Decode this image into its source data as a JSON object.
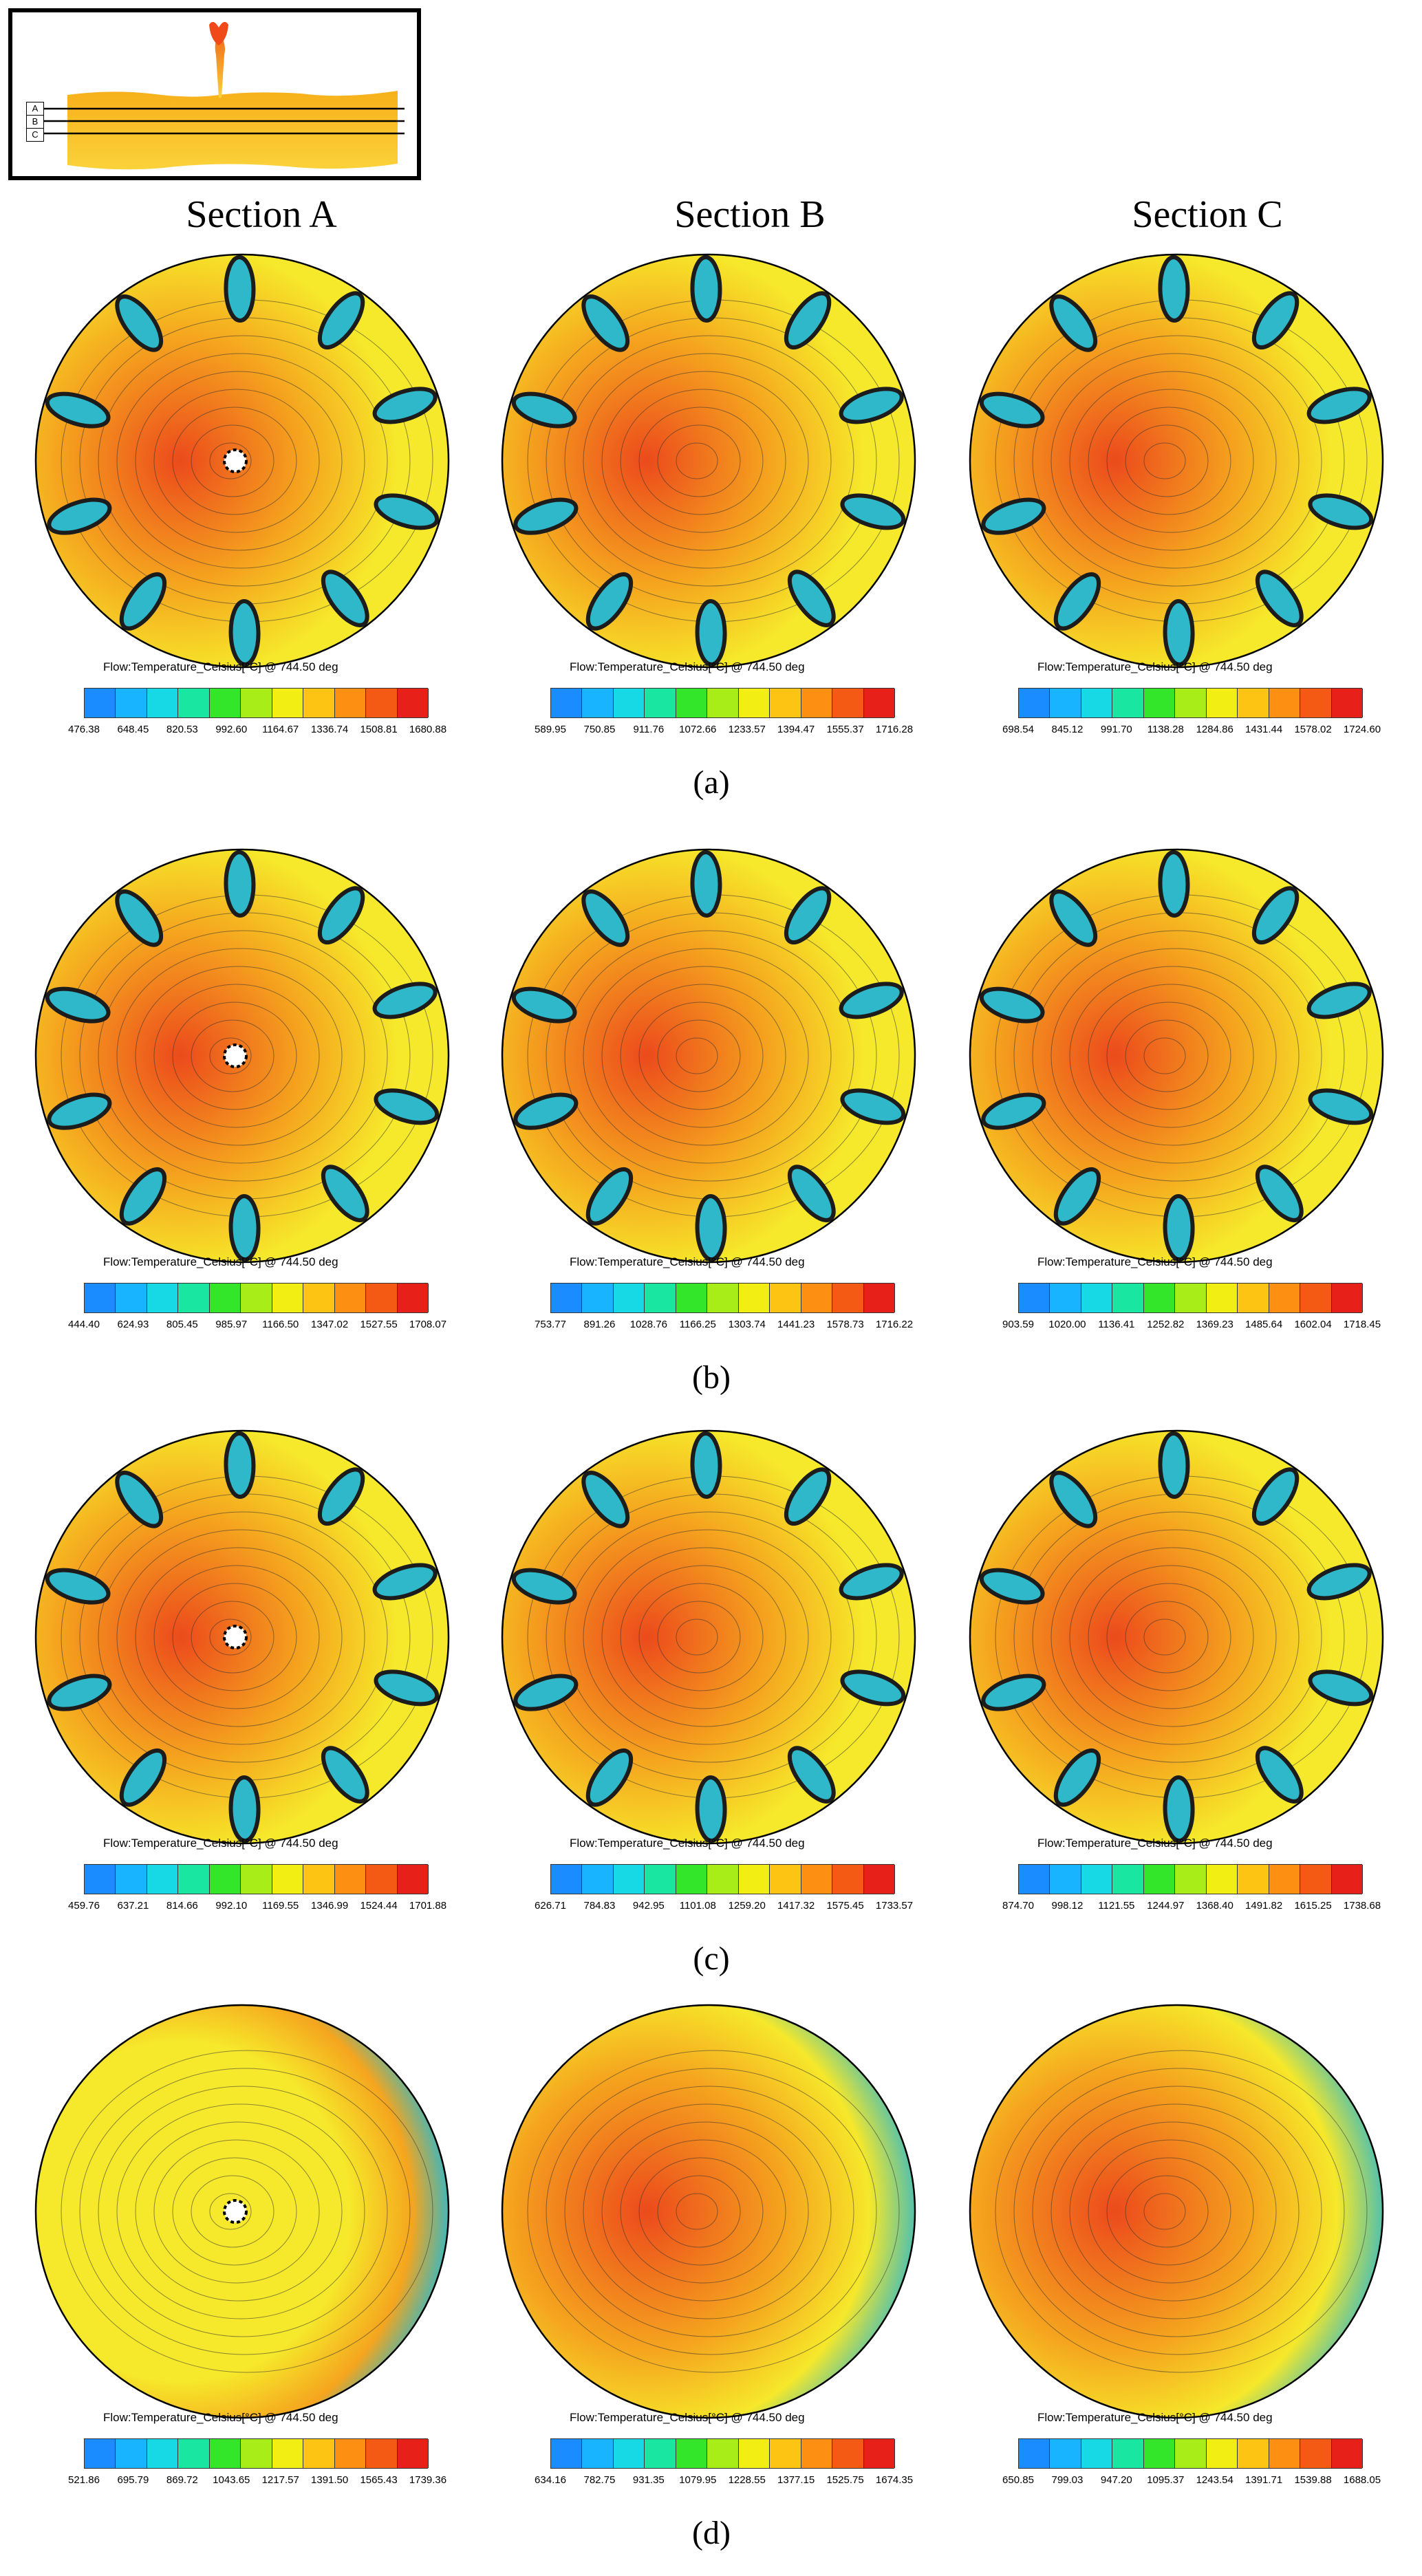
{
  "inset": {
    "markers": [
      "A",
      "B",
      "C"
    ]
  },
  "section_titles": [
    "Section A",
    "Section B",
    "Section C"
  ],
  "rows": [
    {
      "label": "(a)",
      "panels": [
        {
          "flow_label": "Flow:Temperature_Celsius[°C] @ 744.50 deg",
          "ticks": [
            "476.38",
            "648.45",
            "820.53",
            "992.60",
            "1164.67",
            "1336.74",
            "1508.81",
            "1680.88"
          ]
        },
        {
          "flow_label": "Flow:Temperature_Celsius[°C] @ 744.50 deg",
          "ticks": [
            "589.95",
            "750.85",
            "911.76",
            "1072.66",
            "1233.57",
            "1394.47",
            "1555.37",
            "1716.28"
          ]
        },
        {
          "flow_label": "Flow:Temperature_Celsius[°C] @ 744.50 deg",
          "ticks": [
            "698.54",
            "845.12",
            "991.70",
            "1138.28",
            "1284.86",
            "1431.44",
            "1578.02",
            "1724.60"
          ]
        }
      ]
    },
    {
      "label": "(b)",
      "panels": [
        {
          "flow_label": "Flow:Temperature_Celsius[°C] @ 744.50 deg",
          "ticks": [
            "444.40",
            "624.93",
            "805.45",
            "985.97",
            "1166.50",
            "1347.02",
            "1527.55",
            "1708.07"
          ]
        },
        {
          "flow_label": "Flow:Temperature_Celsius[°C] @ 744.50 deg",
          "ticks": [
            "753.77",
            "891.26",
            "1028.76",
            "1166.25",
            "1303.74",
            "1441.23",
            "1578.73",
            "1716.22"
          ]
        },
        {
          "flow_label": "Flow:Temperature_Celsius[°C] @ 744.50 deg",
          "ticks": [
            "903.59",
            "1020.00",
            "1136.41",
            "1252.82",
            "1369.23",
            "1485.64",
            "1602.04",
            "1718.45"
          ]
        }
      ]
    },
    {
      "label": "(c)",
      "panels": [
        {
          "flow_label": "Flow:Temperature_Celsius[°C] @ 744.50 deg",
          "ticks": [
            "459.76",
            "637.21",
            "814.66",
            "992.10",
            "1169.55",
            "1346.99",
            "1524.44",
            "1701.88"
          ]
        },
        {
          "flow_label": "Flow:Temperature_Celsius[°C] @ 744.50 deg",
          "ticks": [
            "626.71",
            "784.83",
            "942.95",
            "1101.08",
            "1259.20",
            "1417.32",
            "1575.45",
            "1733.57"
          ]
        },
        {
          "flow_label": "Flow:Temperature_Celsius[°C] @ 744.50 deg",
          "ticks": [
            "874.70",
            "998.12",
            "1121.55",
            "1244.97",
            "1368.40",
            "1491.82",
            "1615.25",
            "1738.68"
          ]
        }
      ]
    },
    {
      "label": "(d)",
      "panels": [
        {
          "flow_label": "Flow:Temperature_Celsius[°C] @ 744.50 deg",
          "ticks": [
            "521.86",
            "695.79",
            "869.72",
            "1043.65",
            "1217.57",
            "1391.50",
            "1565.43",
            "1739.36"
          ]
        },
        {
          "flow_label": "Flow:Temperature_Celsius[°C] @ 744.50 deg",
          "ticks": [
            "634.16",
            "782.75",
            "931.35",
            "1079.95",
            "1228.55",
            "1377.15",
            "1525.75",
            "1674.35"
          ]
        },
        {
          "flow_label": "Flow:Temperature_Celsius[°C] @ 744.50 deg",
          "ticks": [
            "650.85",
            "799.03",
            "947.20",
            "1095.37",
            "1243.54",
            "1391.71",
            "1539.88",
            "1688.05"
          ]
        }
      ]
    }
  ],
  "colorbar_colors": [
    "#1a8cff",
    "#18b4ff",
    "#17d9e6",
    "#19e6a0",
    "#33e62a",
    "#a8ec18",
    "#f2ee14",
    "#fdc414",
    "#fd9012",
    "#f45a14",
    "#e8201a"
  ],
  "contour_colors": {
    "cold": "#2fb8c9",
    "cold_dark": "#1c1c1c",
    "mid": "#f6e82a",
    "warm": "#f5a51e",
    "hot": "#ec4a1c",
    "edge": "#000000"
  }
}
